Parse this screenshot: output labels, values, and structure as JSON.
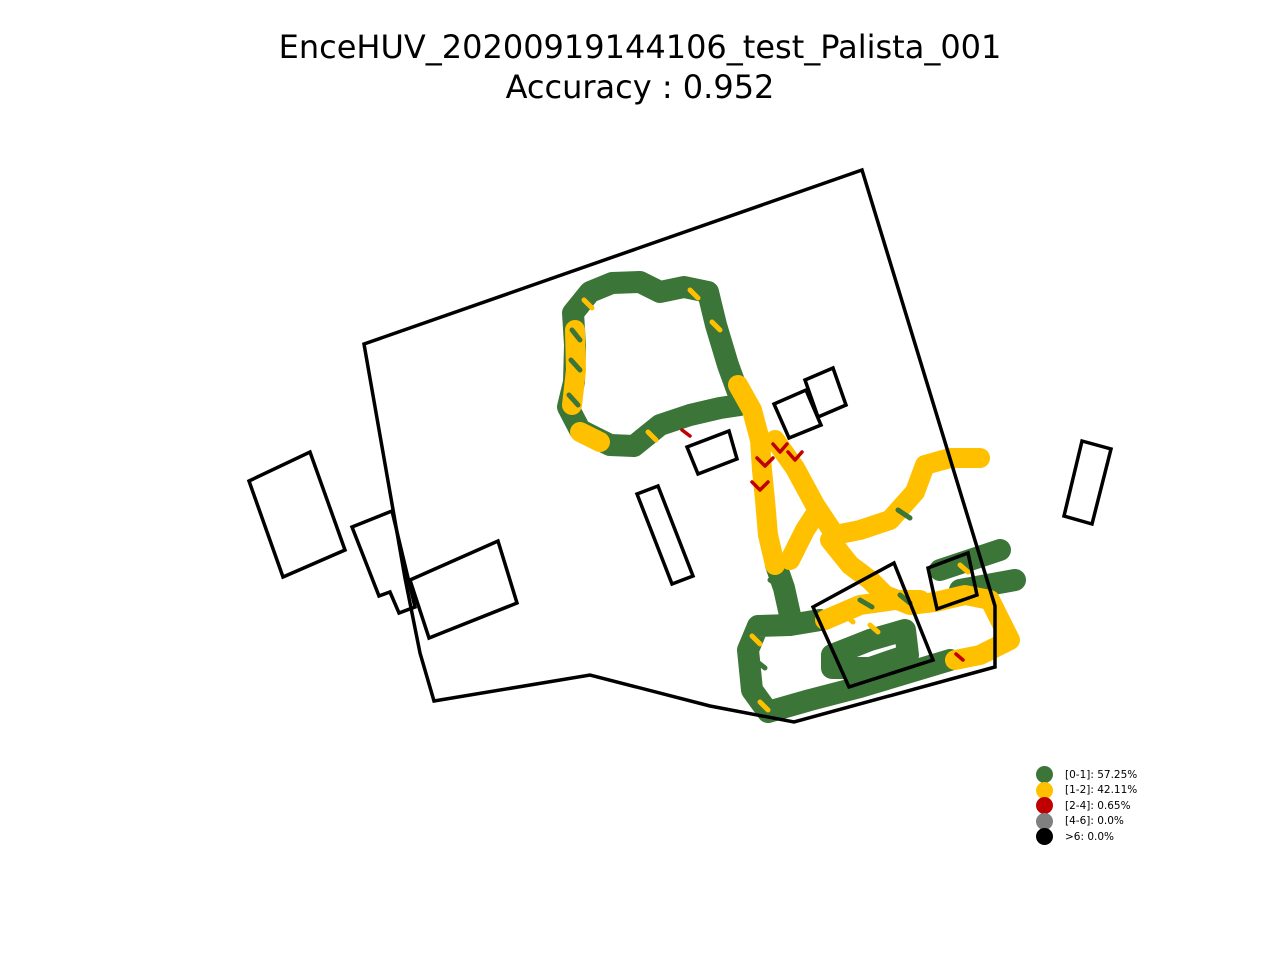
{
  "title": {
    "line1": "EnceHUV_20200919144106_test_Palista_001",
    "line2": "Accuracy : 0.952"
  },
  "colors": {
    "outline": "#000000",
    "background": "#ffffff"
  },
  "legend": {
    "placement": "bottom-right",
    "items": [
      {
        "label": "[0-1]: 57.25%",
        "color": "#3b7638"
      },
      {
        "label": "[1-2]: 42.11%",
        "color": "#ffc000"
      },
      {
        "label": "[2-4]: 0.65%",
        "color": "#c00000"
      },
      {
        "label": "[4-6]: 0.0%",
        "color": "#808080"
      },
      {
        "label": ">6: 0.0%",
        "color": "#000000"
      }
    ]
  }
}
